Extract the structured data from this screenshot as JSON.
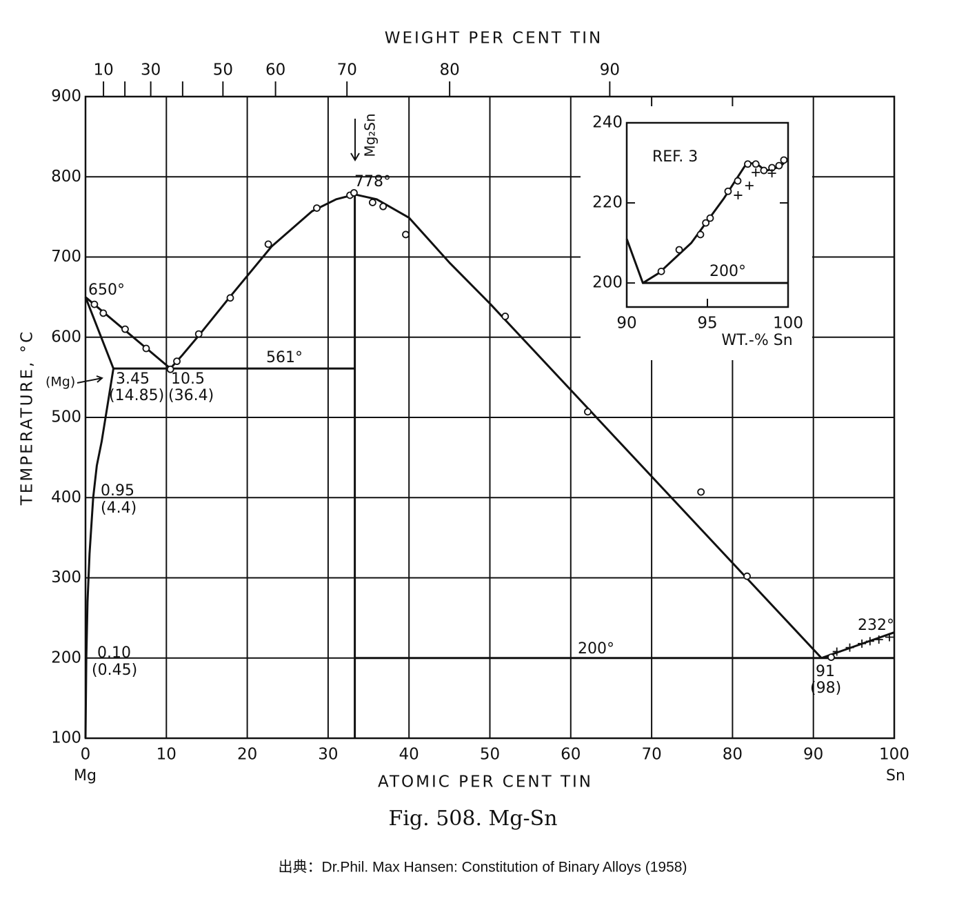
{
  "chart_data": [
    {
      "type": "line",
      "xlabel": "ATOMIC PER CENT TIN",
      "ylabel": "TEMPERATURE, °C",
      "x2label": "WEIGHT PER CENT TIN",
      "xlim": [
        0,
        100
      ],
      "ylim": [
        100,
        900
      ],
      "xticks": [
        0,
        10,
        20,
        30,
        40,
        50,
        60,
        70,
        80,
        90,
        100
      ],
      "yticks": [
        100,
        200,
        300,
        400,
        500,
        600,
        700,
        800,
        900
      ],
      "x2ticks": [
        10,
        {
          "value": 20,
          "label": null
        },
        30,
        {
          "value": 40,
          "label": null
        },
        50,
        60,
        70,
        80,
        90
      ],
      "grid": true,
      "color": "#111111",
      "annotations": [
        "650°",
        "778°",
        "561°",
        "200°",
        "232°",
        "3.45",
        "(14.85)",
        "10.5",
        "(36.4)",
        "0.95",
        "(4.4)",
        "0.10",
        "(0.45)",
        "91",
        "(98)",
        "(Mg)",
        "Mg₂Sn",
        "Mg",
        "Sn"
      ],
      "series": [
        {
          "style": "line",
          "x": [
            0,
            10.5,
            12,
            14,
            18,
            23,
            28,
            31,
            33.3,
            36,
            40,
            45,
            50,
            91
          ],
          "values": [
            650,
            561,
            578,
            602,
            652,
            713,
            757,
            772,
            778,
            772,
            749,
            693,
            642,
            200
          ]
        },
        {
          "style": "line",
          "x": [
            0,
            3.45,
            2.8,
            2,
            1.4,
            0.95,
            0.5,
            0.25,
            0.1,
            0.05,
            0
          ],
          "values": [
            650,
            561,
            520,
            470,
            440,
            400,
            330,
            270,
            200,
            150,
            100
          ]
        },
        {
          "style": "line",
          "x": [
            3.45,
            33.3
          ],
          "values": [
            561,
            561
          ]
        },
        {
          "style": "line",
          "x": [
            33.3,
            33.3
          ],
          "values": [
            100,
            778
          ]
        },
        {
          "style": "line",
          "x": [
            33.3,
            100
          ],
          "values": [
            200,
            200
          ]
        },
        {
          "style": "line",
          "x": [
            91,
            100
          ],
          "values": [
            200,
            232
          ]
        },
        {
          "style": "circle",
          "x": [
            1.1,
            2.2,
            4.9,
            7.5,
            10.5,
            11.3,
            14.0,
            17.9,
            22.6,
            28.6,
            32.7,
            33.2,
            35.5,
            36.8,
            39.6,
            51.9,
            62.1,
            76.1,
            81.8,
            92.2
          ],
          "values": [
            641,
            630,
            610,
            586,
            560,
            570,
            604,
            649,
            716,
            761,
            777,
            780,
            768,
            763,
            728,
            626,
            507,
            407,
            302,
            201
          ]
        },
        {
          "style": "cross",
          "x": [
            92.9,
            94.5,
            96.0,
            97.0,
            98.1,
            99.4
          ],
          "values": [
            208,
            213,
            218,
            221,
            223,
            226
          ]
        }
      ]
    },
    {
      "type": "line",
      "xlabel": "WT.-% Sn",
      "xlim": [
        90,
        100
      ],
      "ylim": [
        194,
        240
      ],
      "xticks": [
        90,
        95,
        100
      ],
      "yticks": [
        200,
        220,
        240
      ],
      "color": "#111111",
      "annotations": [
        "REF. 3",
        "200°"
      ],
      "series": [
        {
          "style": "line",
          "x": [
            90,
            91,
            92,
            94,
            96,
            97.4,
            98,
            98.6,
            99.5,
            100
          ],
          "values": [
            211,
            200,
            202.5,
            210,
            221,
            229.7,
            230,
            228,
            229,
            231
          ]
        },
        {
          "style": "line",
          "x": [
            91,
            100
          ],
          "values": [
            200,
            200
          ]
        },
        {
          "style": "circle",
          "x": [
            92.14,
            93.25,
            94.57,
            94.9,
            95.17,
            96.28,
            96.88,
            97.5,
            98.0,
            98.5,
            99.0,
            99.44,
            99.74
          ],
          "values": [
            202.9,
            208.3,
            212.1,
            215,
            216.2,
            222.9,
            225.5,
            229.7,
            229.7,
            228.1,
            228.8,
            229.3,
            230.7
          ]
        },
        {
          "style": "cross",
          "x": [
            96.9,
            97.6,
            98.0,
            99.0
          ],
          "values": [
            221.9,
            224.3,
            227.6,
            227.4
          ]
        }
      ]
    }
  ],
  "caption": "Fig. 508. Mg-Sn",
  "source": "出典：Dr.Phil. Max Hansen: Constitution of Binary Alloys (1958)"
}
